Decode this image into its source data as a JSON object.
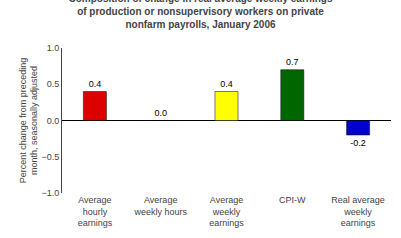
{
  "chart_data": {
    "type": "bar",
    "title": "Composition of change in real average weekly earnings\nof production or nonsupervisory workers on private\nnonfarm payrolls, January 2006",
    "categories": [
      "Average\nhourly\nearnings",
      "Average\nweekly hours",
      "Average\nweekly\nearnings",
      "CPI-W",
      "Real average\nweekly\nearnings"
    ],
    "values": [
      0.4,
      0.0,
      0.4,
      0.7,
      -0.2
    ],
    "value_labels": [
      "0.4",
      "0.0",
      "0.4",
      "0.7",
      "-0.2"
    ],
    "data_labels": true,
    "colors": [
      "#dd0000",
      "#ffff00",
      "#ffff00",
      "#006600",
      "#0000cc"
    ],
    "ylim": [
      -1.0,
      1.0
    ],
    "yticks": [
      {
        "value": -1.0,
        "label": "−1.0"
      },
      {
        "value": -0.5,
        "label": "−0.5"
      },
      {
        "value": 0.0,
        "label": "0.0"
      },
      0.5,
      {
        "value": 1.0,
        "label": "1.0"
      }
    ],
    "ylabel": "Percent change from preceding\nmonth, seasonally adjusted",
    "grid": false
  }
}
